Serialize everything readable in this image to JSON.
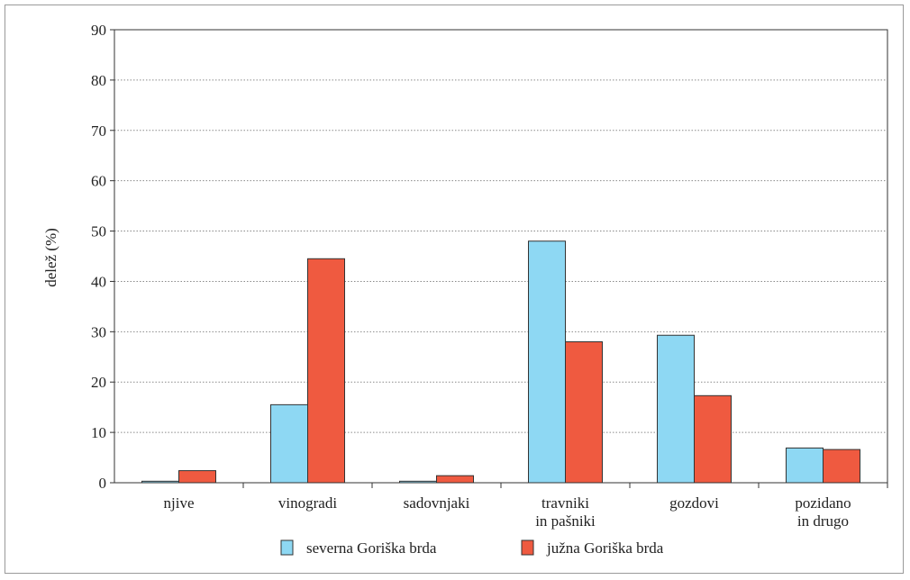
{
  "chart_data": {
    "type": "bar",
    "ylabel": "delež (%)",
    "xlabel": "",
    "title": "",
    "ylim": [
      0,
      90
    ],
    "yticks": [
      0,
      10,
      20,
      30,
      40,
      50,
      60,
      70,
      80,
      90
    ],
    "grid": true,
    "legend_position": "bottom-center",
    "categories": [
      [
        "njive"
      ],
      [
        "vinogradi"
      ],
      [
        "sadovnjaki"
      ],
      [
        "travniki",
        "in pašniki"
      ],
      [
        "gozdovi"
      ],
      [
        "pozidano",
        "in drugo"
      ]
    ],
    "series": [
      {
        "name": "severna Goriška brda",
        "color": "#8ed8f3",
        "values": [
          0.3,
          15.5,
          0.3,
          48.0,
          29.3,
          6.9
        ]
      },
      {
        "name": "južna Goriška brda",
        "color": "#ef5a40",
        "values": [
          2.4,
          44.5,
          1.4,
          28.0,
          17.3,
          6.6
        ]
      }
    ]
  }
}
